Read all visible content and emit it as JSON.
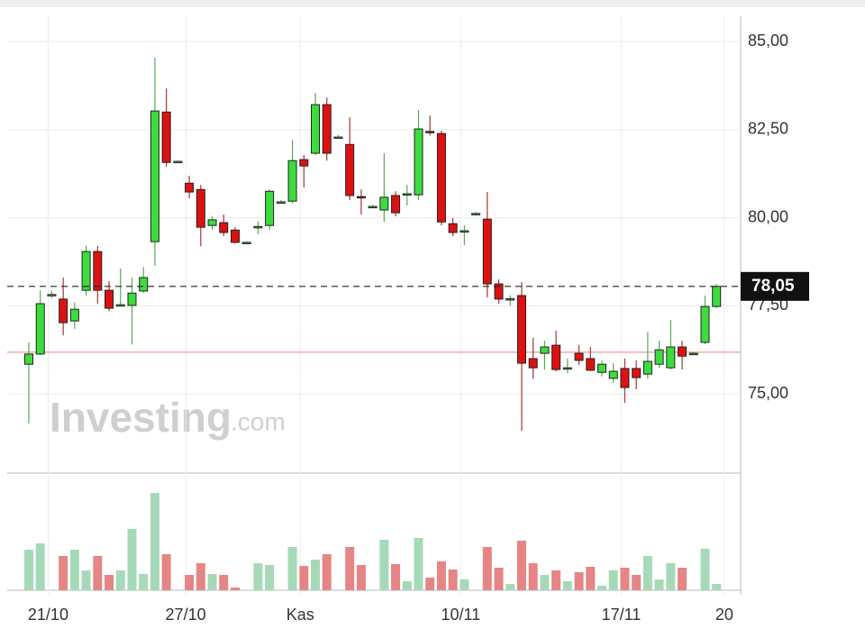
{
  "chart_data": {
    "type": "candlestick",
    "categories": [
      null,
      null,
      "21/10",
      null,
      null,
      null,
      null,
      null,
      null,
      null,
      null,
      null,
      null,
      null,
      "27/10",
      null,
      null,
      null,
      null,
      null,
      null,
      null,
      null,
      null,
      "Kas",
      null,
      null,
      null,
      null,
      null,
      null,
      null,
      null,
      null,
      null,
      null,
      null,
      null,
      "10/11",
      null,
      null,
      null,
      null,
      null,
      null,
      null,
      null,
      null,
      null,
      null,
      null,
      null,
      "17/11",
      null,
      null,
      null,
      null,
      null,
      null,
      null,
      null,
      "20"
    ],
    "open": [
      75.84,
      76.13,
      77.8,
      77.69,
      77.07,
      77.94,
      79.04,
      77.94,
      77.5,
      77.51,
      77.92,
      79.32,
      83.0,
      81.6,
      80.98,
      80.8,
      79.78,
      79.86,
      79.65,
      79.3,
      79.72,
      79.78,
      80.45,
      80.47,
      81.65,
      81.83,
      83.21,
      82.29,
      82.08,
      80.6,
      80.32,
      80.22,
      80.63,
      80.66,
      80.65,
      82.45,
      82.39,
      79.83,
      79.63,
      80.12,
      79.96,
      78.12,
      77.7,
      77.79,
      76.0,
      76.15,
      76.38,
      75.74,
      76.15,
      76.0,
      75.61,
      75.44,
      75.72,
      75.72,
      75.56,
      75.84,
      75.74,
      76.33,
      76.15,
      76.46,
      77.48,
      null
    ],
    "high": [
      76.46,
      77.94,
      77.93,
      78.3,
      77.6,
      79.2,
      79.2,
      78.2,
      78.56,
      78.3,
      78.6,
      84.54,
      83.67,
      81.62,
      81.19,
      80.93,
      80.04,
      80.09,
      79.73,
      79.33,
      79.9,
      80.8,
      80.5,
      82.21,
      81.78,
      83.54,
      83.41,
      82.35,
      82.85,
      80.8,
      80.36,
      81.83,
      80.75,
      80.93,
      83.06,
      82.9,
      82.47,
      79.99,
      79.78,
      80.16,
      80.73,
      78.25,
      77.8,
      78.17,
      76.59,
      76.51,
      76.79,
      76.0,
      76.38,
      76.33,
      75.95,
      75.87,
      76.0,
      75.95,
      76.76,
      76.51,
      77.1,
      76.51,
      76.2,
      77.79,
      78.12,
      null
    ],
    "low": [
      74.16,
      76.1,
      77.72,
      76.66,
      76.84,
      77.79,
      77.56,
      77.35,
      77.48,
      76.4,
      77.87,
      78.63,
      81.45,
      81.55,
      80.55,
      79.19,
      79.65,
      79.48,
      79.27,
      79.27,
      79.53,
      79.65,
      80.4,
      80.4,
      80.86,
      81.78,
      81.62,
      82.25,
      80.5,
      80.09,
      80.28,
      79.88,
      80.04,
      80.35,
      80.5,
      82.34,
      79.78,
      79.48,
      79.22,
      80.08,
      77.74,
      77.56,
      77.5,
      73.95,
      75.43,
      75.69,
      75.64,
      75.59,
      75.82,
      75.64,
      75.49,
      75.31,
      74.74,
      75.13,
      75.43,
      75.74,
      75.69,
      75.69,
      76.1,
      76.41,
      77.43,
      null
    ],
    "close": [
      76.13,
      77.56,
      77.82,
      77.02,
      77.4,
      79.04,
      77.94,
      77.43,
      77.53,
      77.86,
      78.3,
      83.03,
      81.57,
      81.6,
      80.73,
      79.73,
      79.94,
      79.58,
      79.3,
      79.3,
      79.75,
      80.75,
      80.45,
      81.62,
      81.47,
      83.21,
      81.83,
      82.29,
      80.63,
      80.58,
      80.32,
      80.58,
      80.14,
      80.68,
      82.52,
      82.42,
      79.88,
      79.58,
      79.63,
      80.12,
      78.12,
      77.69,
      77.7,
      75.87,
      75.74,
      76.33,
      75.69,
      75.74,
      75.95,
      75.67,
      75.84,
      75.64,
      75.18,
      75.46,
      75.92,
      76.25,
      76.33,
      76.07,
      76.15,
      77.48,
      78.05,
      null
    ],
    "volume": [
      45,
      52,
      0,
      38,
      45,
      22,
      38,
      17,
      22,
      68,
      18,
      108,
      40,
      0,
      17,
      30,
      18,
      17,
      3,
      0,
      30,
      28,
      0,
      48,
      27,
      34,
      40,
      0,
      48,
      28,
      0,
      56,
      29,
      10,
      58,
      14,
      32,
      23,
      12,
      0,
      48,
      25,
      7,
      55,
      30,
      17,
      22,
      10,
      20,
      26,
      5,
      22,
      25,
      17,
      38,
      12,
      30,
      25,
      0,
      46,
      7,
      null
    ],
    "volume_lim": [
      0,
      125
    ],
    "up_color": "#3ddc3d",
    "down_color": "#dd1111",
    "volume_up_color": "#a6d9b8",
    "volume_down_color": "#e58585",
    "ylim": [
      72.75,
      85.72
    ],
    "yticks": [
      {
        "value": 75,
        "label": "75,00"
      },
      {
        "value": 77.5,
        "label": "77,50"
      },
      {
        "value": 80,
        "label": "80,00"
      },
      {
        "value": 82.5,
        "label": "82,50"
      },
      {
        "value": 85,
        "label": "85,00"
      }
    ],
    "grid": true,
    "reference_line": {
      "value": 76.18,
      "color": "#e88080"
    },
    "last_price": {
      "value": 78.05,
      "label": "78,05"
    },
    "watermark": {
      "brand": "Investing",
      "suffix": ".com"
    }
  }
}
